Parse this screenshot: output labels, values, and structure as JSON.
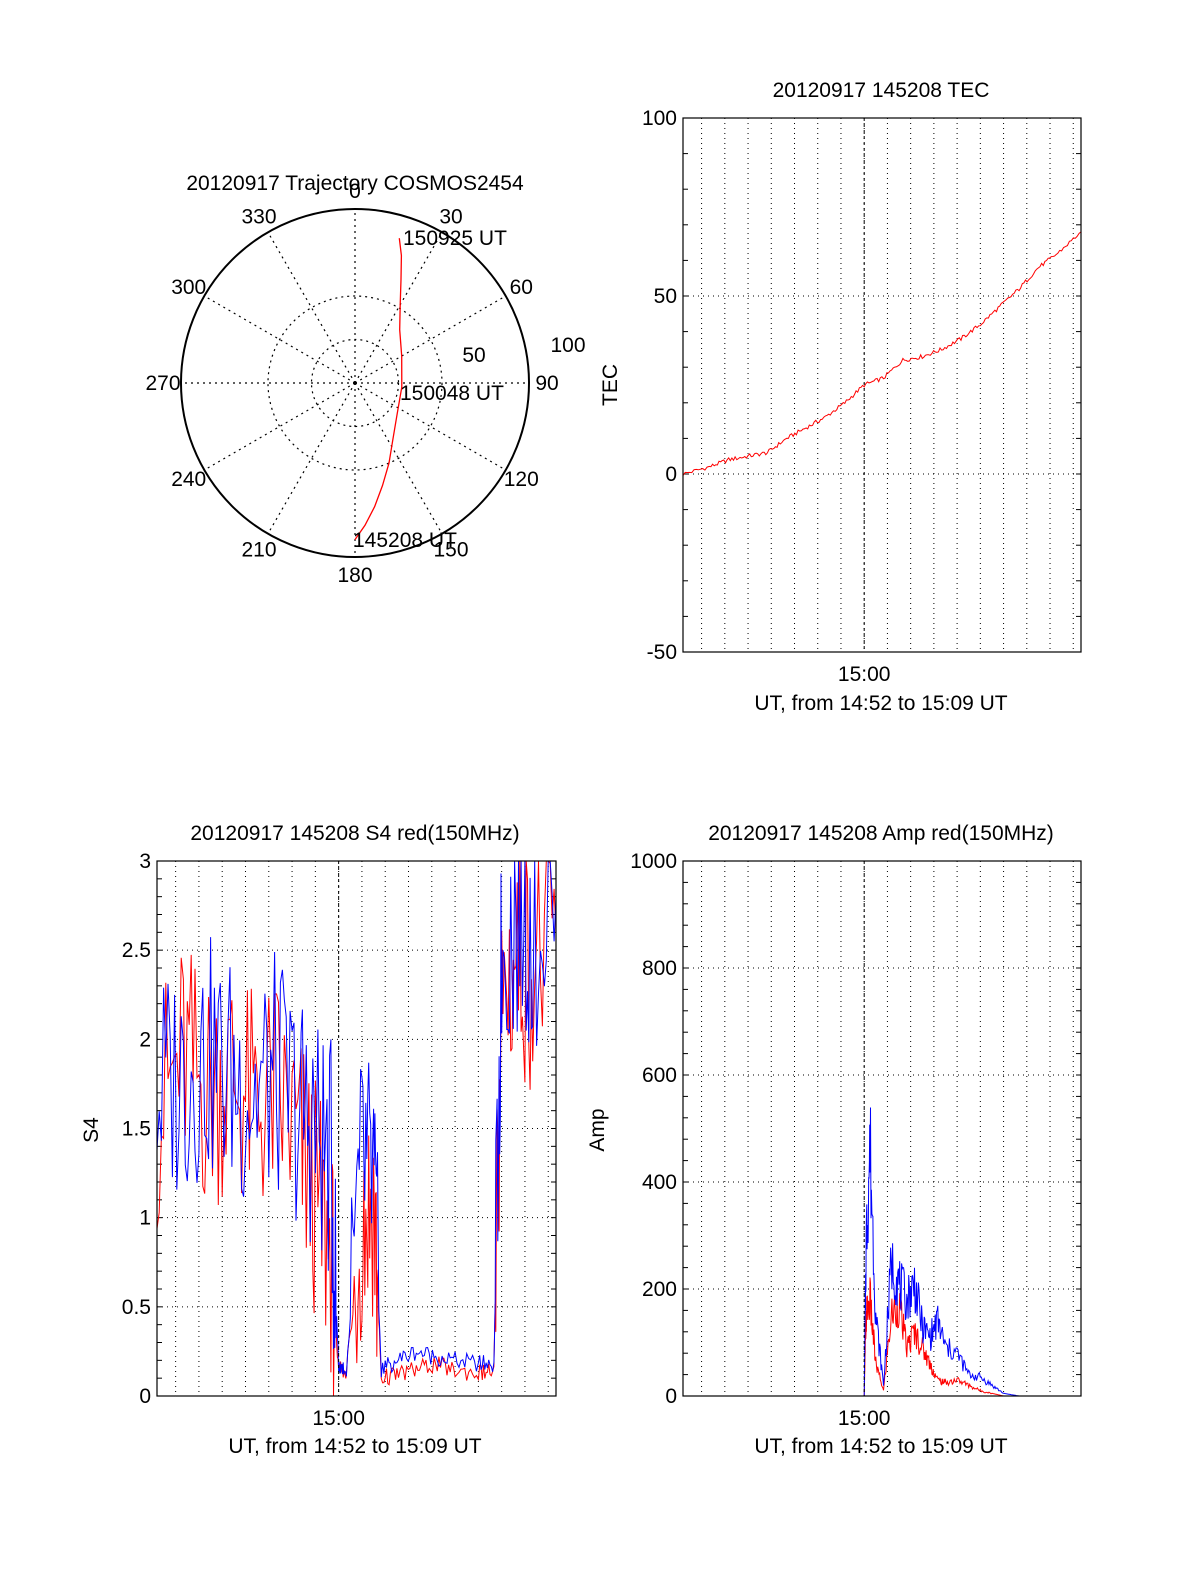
{
  "colors": {
    "red": "#ff0000",
    "blue": "#0000ff",
    "axis": "#000000",
    "grid": "#000000",
    "background": "#ffffff"
  },
  "chart_data": [
    {
      "id": "trajectory",
      "type": "polar",
      "title": "20120917 Trajectory COSMOS2454",
      "angle_ticks": [
        "0",
        "30",
        "60",
        "90",
        "120",
        "150",
        "180",
        "210",
        "240",
        "270",
        "300",
        "330"
      ],
      "angle_values": [
        0,
        30,
        60,
        90,
        120,
        150,
        180,
        210,
        240,
        270,
        300,
        330
      ],
      "radius_ticks": [
        "50",
        "100"
      ],
      "radius_values": [
        50,
        100
      ],
      "annotations": [
        "150925 UT",
        "150048 UT",
        "145208 UT"
      ],
      "grid": true,
      "series": [
        {
          "color": "#ff0000",
          "points": [
            {
              "az": 180,
              "r": 90
            },
            {
              "az": 176,
              "r": 82
            },
            {
              "az": 171,
              "r": 72
            },
            {
              "az": 165,
              "r": 61
            },
            {
              "az": 157,
              "r": 50
            },
            {
              "az": 146,
              "r": 39
            },
            {
              "az": 126,
              "r": 30
            },
            {
              "az": 95,
              "r": 27
            },
            {
              "az": 60,
              "r": 31
            },
            {
              "az": 40,
              "r": 40
            },
            {
              "az": 30,
              "r": 52
            },
            {
              "az": 24,
              "r": 65
            },
            {
              "az": 20,
              "r": 78
            },
            {
              "az": 17,
              "r": 87
            }
          ]
        }
      ]
    },
    {
      "id": "tec",
      "type": "line",
      "title": "20120917 145208 TEC",
      "xlabel": "UT, from 14:52 to 15:09 UT",
      "ylabel": "TEC",
      "x_tick_labels": [
        "15:00"
      ],
      "x_tick_values": [
        900
      ],
      "y_tick_labels": [
        "-50",
        "0",
        "50",
        "100"
      ],
      "y_tick_values": [
        -50,
        0,
        50,
        100
      ],
      "xlim": [
        432,
        1460
      ],
      "ylim": [
        -50,
        100
      ],
      "grid": true,
      "series": [
        {
          "color": "#ff0000",
          "x": [
            432,
            500,
            550,
            600,
            650,
            700,
            750,
            800,
            850,
            900,
            950,
            1000,
            1050,
            1100,
            1150,
            1200,
            1250,
            1300,
            1350,
            1400,
            1460
          ],
          "y": [
            0,
            2,
            4,
            5,
            6,
            10,
            13,
            16,
            20,
            25,
            27,
            32,
            33,
            35,
            38,
            42,
            47,
            52,
            58,
            62,
            68
          ]
        }
      ]
    },
    {
      "id": "s4",
      "type": "line",
      "title": "20120917 145208 S4 red(150MHz)",
      "xlabel": "UT, from 14:52 to 15:09 UT",
      "ylabel": "S4",
      "x_tick_labels": [
        "15:00"
      ],
      "x_tick_values": [
        900
      ],
      "y_tick_labels": [
        "0",
        "0.5",
        "1",
        "1.5",
        "2",
        "2.5",
        "3"
      ],
      "y_tick_values": [
        0,
        0.5,
        1,
        1.5,
        2,
        2.5,
        3
      ],
      "xlim": [
        432,
        1460
      ],
      "ylim": [
        0,
        3
      ],
      "grid": true,
      "series": [
        {
          "color": "#ff0000",
          "x": [
            432,
            500,
            560,
            620,
            680,
            740,
            800,
            840,
            880,
            900,
            920,
            960,
            990,
            1010,
            1050,
            1100,
            1150,
            1200,
            1260,
            1300,
            1320,
            1360,
            1400,
            1460
          ],
          "y": [
            1.6,
            1.9,
            1.7,
            1.8,
            1.6,
            1.7,
            1.4,
            1.1,
            0.8,
            0.15,
            0.13,
            1.0,
            1.1,
            0.1,
            0.12,
            0.15,
            0.18,
            0.14,
            0.13,
            0.14,
            2.2,
            2.5,
            2.4,
            2.6
          ]
        },
        {
          "color": "#0000ff",
          "x": [
            432,
            500,
            560,
            620,
            680,
            740,
            800,
            840,
            880,
            900,
            920,
            960,
            990,
            1010,
            1050,
            1100,
            1150,
            1200,
            1260,
            1300,
            1320,
            1360,
            1400,
            1460
          ],
          "y": [
            1.7,
            1.8,
            1.9,
            1.8,
            1.7,
            1.8,
            1.6,
            1.5,
            1.3,
            0.17,
            0.15,
            1.3,
            1.2,
            0.15,
            0.2,
            0.25,
            0.22,
            0.2,
            0.18,
            0.18,
            2.5,
            2.7,
            2.6,
            2.8
          ]
        }
      ]
    },
    {
      "id": "amp",
      "type": "line",
      "title": "20120917 145208 Amp red(150MHz)",
      "xlabel": "UT, from 14:52 to 15:09 UT",
      "ylabel": "Amp",
      "x_tick_labels": [
        "15:00"
      ],
      "x_tick_values": [
        900
      ],
      "y_tick_labels": [
        "0",
        "200",
        "400",
        "600",
        "800",
        "1000"
      ],
      "y_tick_values": [
        0,
        200,
        400,
        600,
        800,
        1000
      ],
      "xlim": [
        432,
        1460
      ],
      "ylim": [
        0,
        1000
      ],
      "grid": true,
      "series": [
        {
          "color": "#ff0000",
          "x": [
            432,
            900,
            905,
            915,
            930,
            950,
            970,
            990,
            1010,
            1030,
            1050,
            1070,
            1090,
            1110,
            1140,
            1170,
            1200,
            1230,
            1260,
            1300,
            1460
          ],
          "y": [
            0,
            0,
            150,
            180,
            60,
            10,
            150,
            170,
            90,
            120,
            90,
            60,
            30,
            25,
            30,
            20,
            10,
            5,
            0,
            0,
            0
          ]
        },
        {
          "color": "#0000ff",
          "x": [
            432,
            900,
            905,
            915,
            930,
            950,
            970,
            990,
            1010,
            1030,
            1050,
            1070,
            1090,
            1110,
            1140,
            1170,
            1200,
            1230,
            1260,
            1300,
            1460
          ],
          "y": [
            0,
            0,
            280,
            470,
            150,
            20,
            250,
            210,
            180,
            210,
            130,
            110,
            140,
            90,
            80,
            40,
            35,
            20,
            5,
            0,
            0
          ]
        }
      ]
    }
  ]
}
